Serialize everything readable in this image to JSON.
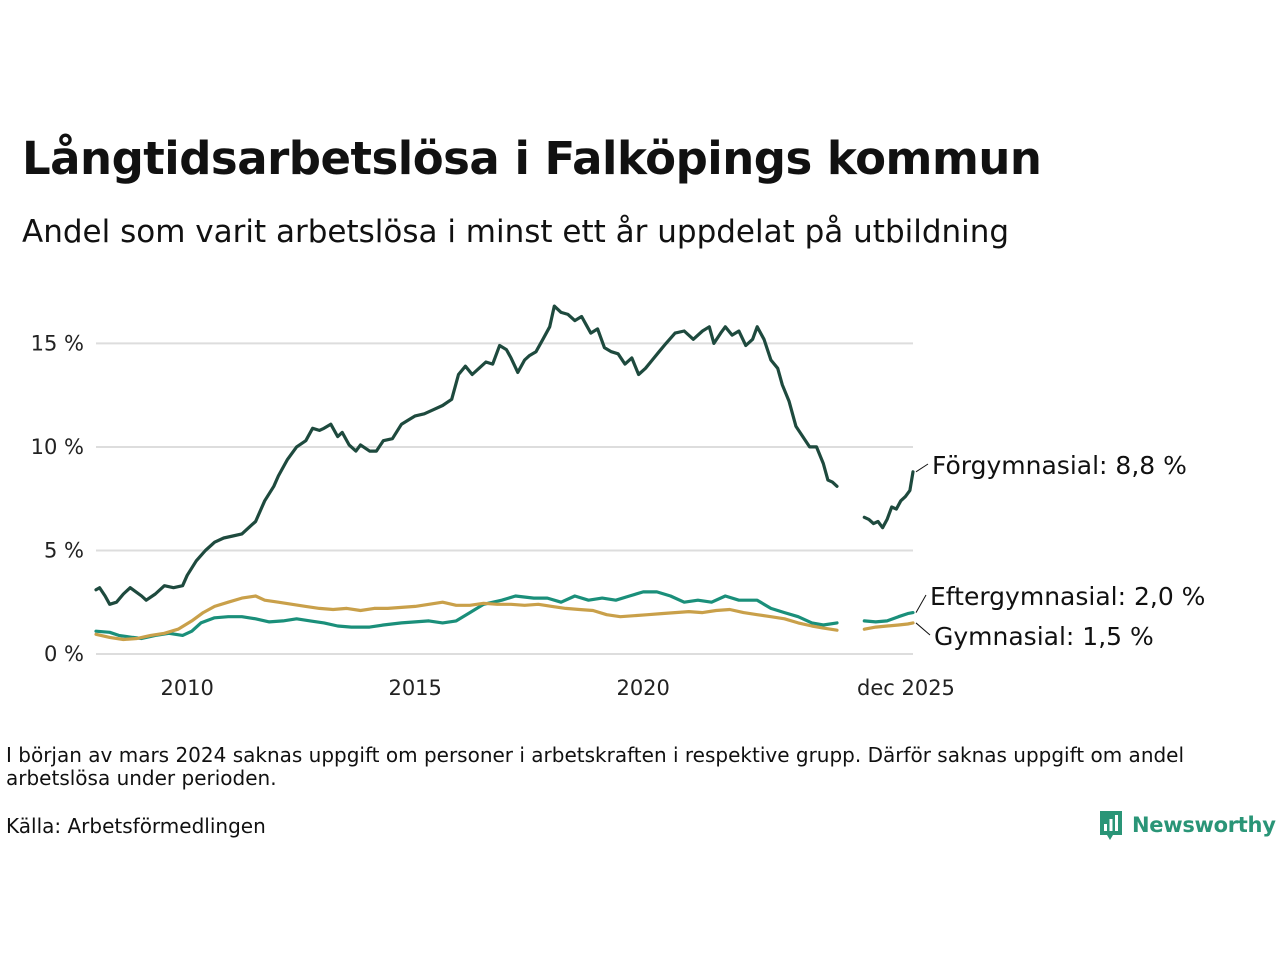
{
  "title": "Långtidsarbetslösa i Falköpings kommun",
  "subtitle": "Andel som varit arbetslösa i minst ett år uppdelat på utbildning",
  "note": "I början av mars 2024 saknas uppgift om personer i arbetskraften i respektive grupp. Därför saknas uppgift om andel arbetslösa under perioden.",
  "source": "Källa: Arbetsförmedlingen",
  "logo": {
    "text": "Newsworthy"
  },
  "colors": {
    "forgymnasial": "#1e4a3e",
    "eftergymnasial": "#1a8f7a",
    "gymnasial": "#c9a04a",
    "grid": "#dddddd",
    "logo": "#2a9577"
  },
  "chart_data": {
    "type": "line",
    "title": "Långtidsarbetslösa i Falköpings kommun",
    "xlabel": "",
    "ylabel": "",
    "x_range": [
      2008.0,
      2025.917
    ],
    "ylim": [
      0,
      17
    ],
    "x_ticks": [
      {
        "value": 2010,
        "label": "2010"
      },
      {
        "value": 2015,
        "label": "2015"
      },
      {
        "value": 2020,
        "label": "2020"
      },
      {
        "value": 2025.917,
        "label": "dec 2025"
      }
    ],
    "y_ticks": [
      {
        "value": 0,
        "label": "0 %"
      },
      {
        "value": 5,
        "label": "5 %"
      },
      {
        "value": 10,
        "label": "10 %"
      },
      {
        "value": 15,
        "label": "15 %"
      }
    ],
    "gap": [
      2023.75,
      2024.33
    ],
    "series": [
      {
        "key": "forgymnasial",
        "name": "Förgymnasial",
        "end_label": "Förgymnasial: 8,8 %",
        "last_value": 8.8,
        "points": [
          [
            2008.0,
            3.1
          ],
          [
            2008.08,
            3.2
          ],
          [
            2008.2,
            2.8
          ],
          [
            2008.3,
            2.4
          ],
          [
            2008.45,
            2.5
          ],
          [
            2008.6,
            2.9
          ],
          [
            2008.75,
            3.2
          ],
          [
            2009.0,
            2.8
          ],
          [
            2009.1,
            2.6
          ],
          [
            2009.3,
            2.9
          ],
          [
            2009.5,
            3.3
          ],
          [
            2009.7,
            3.2
          ],
          [
            2009.9,
            3.3
          ],
          [
            2010.0,
            3.8
          ],
          [
            2010.2,
            4.5
          ],
          [
            2010.4,
            5.0
          ],
          [
            2010.6,
            5.4
          ],
          [
            2010.8,
            5.6
          ],
          [
            2011.0,
            5.7
          ],
          [
            2011.2,
            5.8
          ],
          [
            2011.4,
            6.2
          ],
          [
            2011.5,
            6.4
          ],
          [
            2011.7,
            7.4
          ],
          [
            2011.9,
            8.1
          ],
          [
            2012.0,
            8.6
          ],
          [
            2012.2,
            9.4
          ],
          [
            2012.4,
            10.0
          ],
          [
            2012.6,
            10.3
          ],
          [
            2012.75,
            10.9
          ],
          [
            2012.9,
            10.8
          ],
          [
            2013.0,
            10.9
          ],
          [
            2013.15,
            11.1
          ],
          [
            2013.3,
            10.5
          ],
          [
            2013.4,
            10.7
          ],
          [
            2013.55,
            10.1
          ],
          [
            2013.7,
            9.8
          ],
          [
            2013.8,
            10.1
          ],
          [
            2014.0,
            9.8
          ],
          [
            2014.15,
            9.8
          ],
          [
            2014.3,
            10.3
          ],
          [
            2014.5,
            10.4
          ],
          [
            2014.7,
            11.1
          ],
          [
            2014.85,
            11.3
          ],
          [
            2015.0,
            11.5
          ],
          [
            2015.2,
            11.6
          ],
          [
            2015.4,
            11.8
          ],
          [
            2015.6,
            12.0
          ],
          [
            2015.8,
            12.3
          ],
          [
            2015.95,
            13.5
          ],
          [
            2016.1,
            13.9
          ],
          [
            2016.25,
            13.5
          ],
          [
            2016.4,
            13.8
          ],
          [
            2016.55,
            14.1
          ],
          [
            2016.7,
            14.0
          ],
          [
            2016.85,
            14.9
          ],
          [
            2017.0,
            14.7
          ],
          [
            2017.1,
            14.3
          ],
          [
            2017.25,
            13.6
          ],
          [
            2017.4,
            14.2
          ],
          [
            2017.5,
            14.4
          ],
          [
            2017.65,
            14.6
          ],
          [
            2017.8,
            15.2
          ],
          [
            2017.95,
            15.8
          ],
          [
            2018.05,
            16.8
          ],
          [
            2018.2,
            16.5
          ],
          [
            2018.35,
            16.4
          ],
          [
            2018.5,
            16.1
          ],
          [
            2018.65,
            16.3
          ],
          [
            2018.75,
            15.9
          ],
          [
            2018.85,
            15.5
          ],
          [
            2019.0,
            15.7
          ],
          [
            2019.15,
            14.8
          ],
          [
            2019.3,
            14.6
          ],
          [
            2019.45,
            14.5
          ],
          [
            2019.6,
            14.0
          ],
          [
            2019.75,
            14.3
          ],
          [
            2019.9,
            13.5
          ],
          [
            2020.05,
            13.8
          ],
          [
            2020.2,
            14.2
          ],
          [
            2020.35,
            14.6
          ],
          [
            2020.5,
            15.0
          ],
          [
            2020.7,
            15.5
          ],
          [
            2020.9,
            15.6
          ],
          [
            2021.1,
            15.2
          ],
          [
            2021.3,
            15.6
          ],
          [
            2021.45,
            15.8
          ],
          [
            2021.55,
            15.0
          ],
          [
            2021.7,
            15.5
          ],
          [
            2021.8,
            15.8
          ],
          [
            2021.95,
            15.4
          ],
          [
            2022.1,
            15.6
          ],
          [
            2022.25,
            14.9
          ],
          [
            2022.4,
            15.2
          ],
          [
            2022.5,
            15.8
          ],
          [
            2022.65,
            15.2
          ],
          [
            2022.8,
            14.2
          ],
          [
            2022.95,
            13.8
          ],
          [
            2023.05,
            13.0
          ],
          [
            2023.2,
            12.2
          ],
          [
            2023.35,
            11.0
          ],
          [
            2023.5,
            10.5
          ],
          [
            2023.65,
            10.0
          ],
          [
            2023.8,
            10.0
          ],
          [
            2023.95,
            9.2
          ],
          [
            2024.05,
            8.4
          ],
          [
            2024.15,
            8.3
          ],
          [
            2024.25,
            8.1
          ],
          null,
          [
            2024.85,
            6.6
          ],
          [
            2024.95,
            6.5
          ],
          [
            2025.05,
            6.3
          ],
          [
            2025.15,
            6.4
          ],
          [
            2025.25,
            6.1
          ],
          [
            2025.35,
            6.5
          ],
          [
            2025.45,
            7.1
          ],
          [
            2025.55,
            7.0
          ],
          [
            2025.65,
            7.4
          ],
          [
            2025.75,
            7.6
          ],
          [
            2025.85,
            7.9
          ],
          [
            2025.917,
            8.8
          ]
        ]
      },
      {
        "key": "eftergymnasial",
        "name": "Eftergymnasial",
        "end_label": "Eftergymnasial: 2,0 %",
        "last_value": 2.0,
        "points": [
          [
            2008.0,
            1.1
          ],
          [
            2008.3,
            1.05
          ],
          [
            2008.5,
            0.9
          ],
          [
            2008.8,
            0.8
          ],
          [
            2009.0,
            0.75
          ],
          [
            2009.3,
            0.9
          ],
          [
            2009.6,
            1.0
          ],
          [
            2009.9,
            0.9
          ],
          [
            2010.1,
            1.1
          ],
          [
            2010.3,
            1.5
          ],
          [
            2010.6,
            1.75
          ],
          [
            2010.9,
            1.8
          ],
          [
            2011.2,
            1.8
          ],
          [
            2011.5,
            1.7
          ],
          [
            2011.8,
            1.55
          ],
          [
            2012.1,
            1.6
          ],
          [
            2012.4,
            1.7
          ],
          [
            2012.7,
            1.6
          ],
          [
            2013.0,
            1.5
          ],
          [
            2013.3,
            1.35
          ],
          [
            2013.6,
            1.3
          ],
          [
            2014.0,
            1.3
          ],
          [
            2014.3,
            1.4
          ],
          [
            2014.7,
            1.5
          ],
          [
            2015.0,
            1.55
          ],
          [
            2015.3,
            1.6
          ],
          [
            2015.6,
            1.5
          ],
          [
            2015.9,
            1.6
          ],
          [
            2016.2,
            2.0
          ],
          [
            2016.5,
            2.4
          ],
          [
            2016.9,
            2.6
          ],
          [
            2017.2,
            2.8
          ],
          [
            2017.6,
            2.7
          ],
          [
            2017.9,
            2.7
          ],
          [
            2018.2,
            2.5
          ],
          [
            2018.5,
            2.8
          ],
          [
            2018.8,
            2.6
          ],
          [
            2019.1,
            2.7
          ],
          [
            2019.4,
            2.6
          ],
          [
            2019.7,
            2.8
          ],
          [
            2020.0,
            3.0
          ],
          [
            2020.3,
            3.0
          ],
          [
            2020.6,
            2.8
          ],
          [
            2020.9,
            2.5
          ],
          [
            2021.2,
            2.6
          ],
          [
            2021.5,
            2.5
          ],
          [
            2021.8,
            2.8
          ],
          [
            2022.1,
            2.6
          ],
          [
            2022.5,
            2.6
          ],
          [
            2022.8,
            2.2
          ],
          [
            2023.1,
            2.0
          ],
          [
            2023.4,
            1.8
          ],
          [
            2023.7,
            1.5
          ],
          [
            2023.95,
            1.4
          ],
          [
            2024.25,
            1.5
          ],
          null,
          [
            2024.85,
            1.6
          ],
          [
            2025.1,
            1.55
          ],
          [
            2025.35,
            1.6
          ],
          [
            2025.6,
            1.8
          ],
          [
            2025.8,
            1.95
          ],
          [
            2025.917,
            2.0
          ]
        ]
      },
      {
        "key": "gymnasial",
        "name": "Gymnasial",
        "end_label": "Gymnasial: 1,5 %",
        "last_value": 1.5,
        "points": [
          [
            2008.0,
            0.95
          ],
          [
            2008.3,
            0.8
          ],
          [
            2008.6,
            0.7
          ],
          [
            2008.9,
            0.75
          ],
          [
            2009.2,
            0.9
          ],
          [
            2009.5,
            1.0
          ],
          [
            2009.8,
            1.2
          ],
          [
            2010.1,
            1.6
          ],
          [
            2010.35,
            2.0
          ],
          [
            2010.6,
            2.3
          ],
          [
            2010.9,
            2.5
          ],
          [
            2011.2,
            2.7
          ],
          [
            2011.5,
            2.8
          ],
          [
            2011.7,
            2.6
          ],
          [
            2012.0,
            2.5
          ],
          [
            2012.3,
            2.4
          ],
          [
            2012.6,
            2.3
          ],
          [
            2012.9,
            2.2
          ],
          [
            2013.2,
            2.15
          ],
          [
            2013.5,
            2.2
          ],
          [
            2013.8,
            2.1
          ],
          [
            2014.1,
            2.2
          ],
          [
            2014.4,
            2.2
          ],
          [
            2014.7,
            2.25
          ],
          [
            2015.0,
            2.3
          ],
          [
            2015.3,
            2.4
          ],
          [
            2015.6,
            2.5
          ],
          [
            2015.9,
            2.35
          ],
          [
            2016.2,
            2.35
          ],
          [
            2016.5,
            2.45
          ],
          [
            2016.8,
            2.4
          ],
          [
            2017.1,
            2.4
          ],
          [
            2017.4,
            2.35
          ],
          [
            2017.7,
            2.4
          ],
          [
            2018.0,
            2.3
          ],
          [
            2018.3,
            2.2
          ],
          [
            2018.6,
            2.15
          ],
          [
            2018.9,
            2.1
          ],
          [
            2019.2,
            1.9
          ],
          [
            2019.5,
            1.8
          ],
          [
            2019.8,
            1.85
          ],
          [
            2020.1,
            1.9
          ],
          [
            2020.4,
            1.95
          ],
          [
            2020.7,
            2.0
          ],
          [
            2021.0,
            2.05
          ],
          [
            2021.3,
            2.0
          ],
          [
            2021.6,
            2.1
          ],
          [
            2021.9,
            2.15
          ],
          [
            2022.2,
            2.0
          ],
          [
            2022.5,
            1.9
          ],
          [
            2022.8,
            1.8
          ],
          [
            2023.1,
            1.7
          ],
          [
            2023.4,
            1.5
          ],
          [
            2023.7,
            1.35
          ],
          [
            2023.95,
            1.25
          ],
          [
            2024.25,
            1.15
          ],
          null,
          [
            2024.85,
            1.2
          ],
          [
            2025.1,
            1.3
          ],
          [
            2025.35,
            1.35
          ],
          [
            2025.6,
            1.4
          ],
          [
            2025.8,
            1.45
          ],
          [
            2025.917,
            1.5
          ]
        ]
      }
    ]
  }
}
